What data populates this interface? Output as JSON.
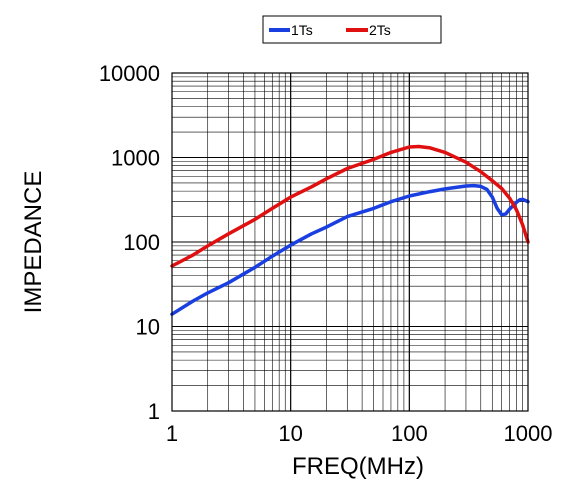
{
  "chart_data": {
    "type": "line",
    "title": "",
    "xlabel": "FREQ(MHz)",
    "ylabel": "IMPEDANCE",
    "xscale": "log",
    "yscale": "log",
    "xlim": [
      1,
      1000
    ],
    "ylim": [
      1,
      10000
    ],
    "xticks": [
      "1",
      "10",
      "100",
      "1000"
    ],
    "yticks": [
      "1",
      "10",
      "100",
      "1000",
      "10000"
    ],
    "grid": true,
    "legend": "top-center",
    "series": [
      {
        "name": "1Ts",
        "color": "#1a3fe0",
        "x": [
          1,
          1.5,
          2,
          3,
          5,
          7,
          10,
          15,
          20,
          30,
          50,
          70,
          100,
          150,
          200,
          300,
          350,
          400,
          450,
          500,
          550,
          600,
          650,
          700,
          750,
          800,
          850,
          900,
          950,
          1000
        ],
        "y": [
          14,
          20,
          25,
          33,
          50,
          68,
          92,
          125,
          150,
          200,
          250,
          300,
          350,
          395,
          425,
          460,
          465,
          455,
          420,
          340,
          250,
          210,
          215,
          245,
          270,
          295,
          315,
          320,
          310,
          300
        ]
      },
      {
        "name": "2Ts",
        "color": "#e01010",
        "x": [
          1,
          1.5,
          2,
          3,
          5,
          7,
          10,
          15,
          20,
          30,
          50,
          70,
          100,
          120,
          150,
          200,
          300,
          400,
          500,
          600,
          700,
          800,
          900,
          1000
        ],
        "y": [
          52,
          70,
          90,
          125,
          185,
          250,
          340,
          450,
          560,
          740,
          950,
          1150,
          1330,
          1350,
          1300,
          1150,
          880,
          680,
          530,
          430,
          330,
          240,
          160,
          100
        ]
      }
    ]
  }
}
